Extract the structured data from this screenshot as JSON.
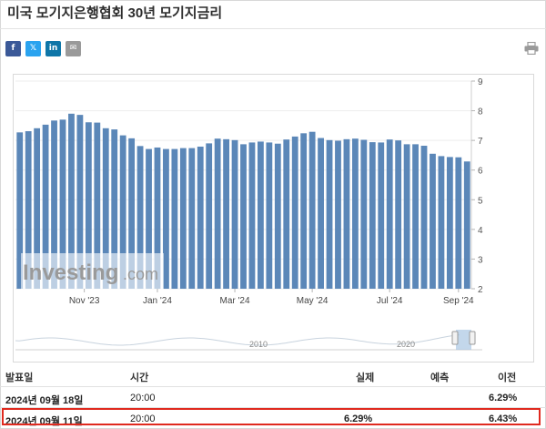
{
  "page": {
    "title": "미국 모기지은행협회 30년 모기지금리"
  },
  "share": {
    "facebook": "f",
    "twitter": "𝕏",
    "linkedin": "in",
    "email": "✉",
    "icons": [
      "facebook-icon",
      "twitter-icon",
      "linkedin-icon",
      "email-icon",
      "print-icon"
    ]
  },
  "watermark": {
    "brand": "Investing",
    "suffix": ".com"
  },
  "chart_data": {
    "type": "bar",
    "color": "#5b87b8",
    "values": [
      7.27,
      7.31,
      7.41,
      7.53,
      7.67,
      7.7,
      7.9,
      7.86,
      7.61,
      7.6,
      7.41,
      7.37,
      7.17,
      7.07,
      6.81,
      6.71,
      6.76,
      6.71,
      6.71,
      6.74,
      6.74,
      6.79,
      6.9,
      7.06,
      7.04,
      7.01,
      6.87,
      6.93,
      6.96,
      6.93,
      6.89,
      7.03,
      7.13,
      7.24,
      7.29,
      7.08,
      7.01,
      6.99,
      7.04,
      7.06,
      7.02,
      6.94,
      6.93,
      7.03,
      7.0,
      6.87,
      6.87,
      6.82,
      6.55,
      6.47,
      6.44,
      6.43,
      6.29
    ],
    "x_ticks": [
      "Nov '23",
      "Jan '24",
      "Mar '24",
      "May '24",
      "Jul '24",
      "Sep '24"
    ],
    "x_tick_index": [
      7.5,
      16,
      25,
      34,
      43,
      51
    ],
    "y_ticks": [
      2,
      3,
      4,
      5,
      6,
      7,
      8,
      9
    ],
    "ylim": [
      2,
      9
    ],
    "navigator": {
      "labels": [
        "2010",
        "2020"
      ]
    }
  },
  "table": {
    "headers": [
      "발표일",
      "시간",
      "실제",
      "예측",
      "이전"
    ],
    "rows": [
      {
        "date": "2024년 09월 18일",
        "time": "20:00",
        "actual": "",
        "forecast": "",
        "previous": "6.29%"
      },
      {
        "date": "2024년 09월 11일",
        "time": "20:00",
        "actual": "6.29%",
        "forecast": "",
        "previous": "6.43%"
      }
    ]
  }
}
